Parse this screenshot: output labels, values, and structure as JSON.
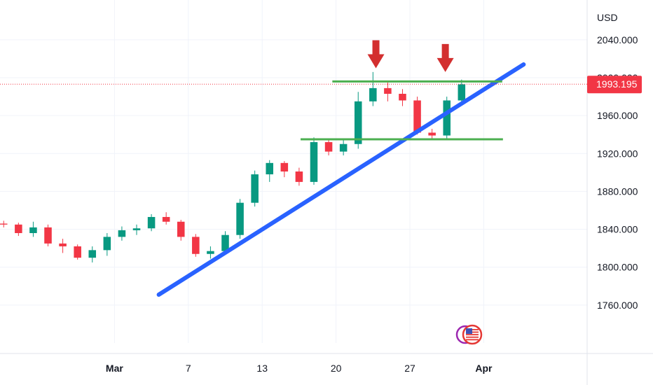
{
  "chart_data": {
    "type": "candlestick",
    "currency": "USD",
    "y_axis": {
      "range": [
        1720,
        2082
      ],
      "ticks": [
        "2040.000",
        "2000.000",
        "1960.000",
        "1920.000",
        "1880.000",
        "1840.000",
        "1800.000",
        "1760.000"
      ],
      "tick_values": [
        2040,
        2000,
        1960,
        1920,
        1880,
        1840,
        1800,
        1760
      ]
    },
    "x_axis": {
      "range": [
        -0.25,
        39.5
      ],
      "ticks": [
        {
          "label": "Mar",
          "x": 7.5
        },
        {
          "label": "7",
          "x": 12.5
        },
        {
          "label": "13",
          "x": 17.5
        },
        {
          "label": "20",
          "x": 22.5
        },
        {
          "label": "27",
          "x": 27.5
        },
        {
          "label": "Apr",
          "x": 32.5
        }
      ]
    },
    "last_price": {
      "label": "1993.195",
      "value": 1993.195,
      "color": "#f23645"
    },
    "colors": {
      "up": "#089981",
      "down": "#f23645",
      "trendline": "#2962ff",
      "levels": "#4caf50",
      "markers": "#d32f2f",
      "grid": "#f0f3fa"
    },
    "series": [
      {
        "day": 0,
        "ohlc": [
          1846,
          1849,
          1842,
          1845
        ]
      },
      {
        "day": 1,
        "ohlc": [
          1845,
          1847,
          1833,
          1836
        ]
      },
      {
        "day": 2,
        "ohlc": [
          1836,
          1848,
          1832,
          1842
        ]
      },
      {
        "day": 3,
        "ohlc": [
          1842,
          1845,
          1822,
          1825
        ]
      },
      {
        "day": 4,
        "ohlc": [
          1825,
          1830,
          1815,
          1822
        ]
      },
      {
        "day": 5,
        "ohlc": [
          1822,
          1824,
          1808,
          1810
        ]
      },
      {
        "day": 6,
        "ohlc": [
          1810,
          1822,
          1805,
          1818
        ]
      },
      {
        "day": 7,
        "ohlc": [
          1818,
          1836,
          1812,
          1832
        ]
      },
      {
        "day": 8,
        "ohlc": [
          1832,
          1843,
          1828,
          1839
        ]
      },
      {
        "day": 9,
        "ohlc": [
          1839,
          1845,
          1834,
          1841
        ]
      },
      {
        "day": 10,
        "ohlc": [
          1841,
          1856,
          1838,
          1853
        ]
      },
      {
        "day": 11,
        "ohlc": [
          1853,
          1858,
          1845,
          1848
        ]
      },
      {
        "day": 12,
        "ohlc": [
          1848,
          1850,
          1828,
          1832
        ]
      },
      {
        "day": 13,
        "ohlc": [
          1832,
          1835,
          1811,
          1814
        ]
      },
      {
        "day": 14,
        "ohlc": [
          1814,
          1822,
          1809,
          1817
        ]
      },
      {
        "day": 15,
        "ohlc": [
          1817,
          1838,
          1813,
          1834
        ]
      },
      {
        "day": 16,
        "ohlc": [
          1834,
          1872,
          1830,
          1868
        ]
      },
      {
        "day": 17,
        "ohlc": [
          1868,
          1902,
          1864,
          1898
        ]
      },
      {
        "day": 18,
        "ohlc": [
          1898,
          1913,
          1890,
          1910
        ]
      },
      {
        "day": 19,
        "ohlc": [
          1910,
          1912,
          1895,
          1901
        ]
      },
      {
        "day": 20,
        "ohlc": [
          1901,
          1905,
          1886,
          1890
        ]
      },
      {
        "day": 21,
        "ohlc": [
          1890,
          1937,
          1887,
          1932
        ]
      },
      {
        "day": 22,
        "ohlc": [
          1932,
          1936,
          1918,
          1922
        ]
      },
      {
        "day": 23,
        "ohlc": [
          1922,
          1936,
          1918,
          1930
        ]
      },
      {
        "day": 24,
        "ohlc": [
          1930,
          1985,
          1925,
          1975
        ]
      },
      {
        "day": 25,
        "ohlc": [
          1975,
          2006,
          1970,
          1989
        ]
      },
      {
        "day": 26,
        "ohlc": [
          1989,
          1995,
          1975,
          1983
        ]
      },
      {
        "day": 27,
        "ohlc": [
          1983,
          1988,
          1970,
          1976
        ]
      },
      {
        "day": 28,
        "ohlc": [
          1976,
          1980,
          1940,
          1942
        ]
      },
      {
        "day": 29,
        "ohlc": [
          1942,
          1946,
          1935,
          1939
        ]
      },
      {
        "day": 30,
        "ohlc": [
          1939,
          1980,
          1936,
          1976
        ]
      },
      {
        "day": 31,
        "ohlc": [
          1976,
          1998,
          1972,
          1993
        ]
      }
    ],
    "annotations": {
      "trendline": {
        "from": [
          10.5,
          1771
        ],
        "to": [
          35.2,
          2014
        ]
      },
      "resistance": {
        "y": 1996,
        "x": [
          22.25,
          33.75
        ]
      },
      "support": {
        "y": 1935,
        "x": [
          20.1,
          33.8
        ]
      },
      "markers": [
        {
          "x": 25.2,
          "y_tip": 2010
        },
        {
          "x": 29.9,
          "y_tip": 2006
        }
      ]
    }
  }
}
